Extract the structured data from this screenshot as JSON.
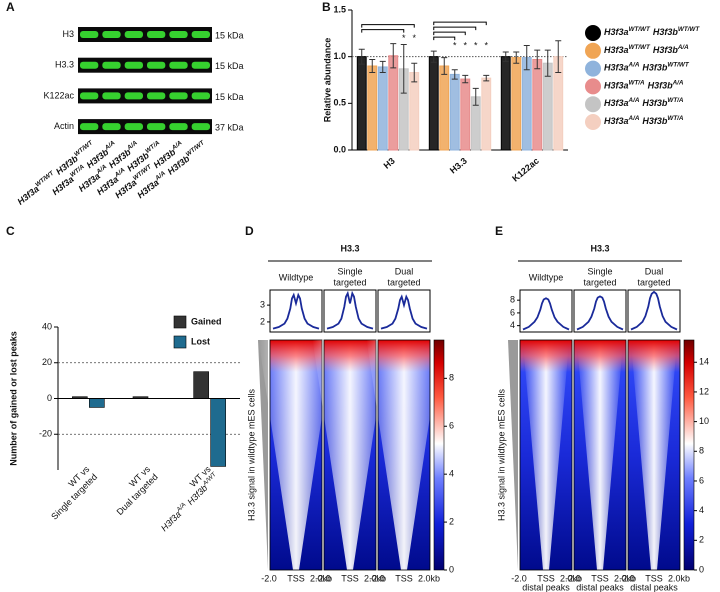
{
  "blot": {
    "label": "A",
    "rows": [
      {
        "name": "H3",
        "size": "15 kDa"
      },
      {
        "name": "H3.3",
        "size": "15 kDa"
      },
      {
        "name": "K122ac",
        "size": "15 kDa"
      },
      {
        "name": "Actin",
        "size": "37 kDa"
      }
    ],
    "lanes": [
      [
        "H3f3a",
        "WT/WT",
        "H3f3b",
        "WT/WT"
      ],
      [
        "H3f3a",
        "WT/A",
        "H3f3b",
        "A/A"
      ],
      [
        "H3f3a",
        "A/A",
        "H3f3b",
        "A/A"
      ],
      [
        "H3f3a",
        "A/A",
        "H3f3b",
        "WT/A"
      ],
      [
        "H3f3a",
        "WT/WT",
        "H3f3b",
        "A/A"
      ],
      [
        "H3f3a",
        "A/A",
        "H3f3b",
        "WT/WT"
      ]
    ]
  },
  "chart_data": [
    {
      "type": "bar",
      "label": "B",
      "y_label": "Relative abundance",
      "categories": [
        "H3",
        "H3.3",
        "K122ac"
      ],
      "series": [
        {
          "name": [
            "H3f3a",
            "WT/WT",
            "H3f3b",
            "WT/WT"
          ],
          "color": "#000000",
          "values": [
            1.0,
            1.0,
            1.0
          ],
          "errors": [
            0.08,
            0.06,
            0.05
          ]
        },
        {
          "name": [
            "H3f3a",
            "WT/WT",
            "H3f3b",
            "A/A"
          ],
          "color": "#f0a555",
          "values": [
            0.9,
            0.9,
            0.99
          ],
          "errors": [
            0.07,
            0.09,
            0.06
          ]
        },
        {
          "name": [
            "H3f3a",
            "A/A",
            "H3f3b",
            "WT/WT"
          ],
          "color": "#8fb3dc",
          "values": [
            0.89,
            0.81,
            0.99
          ],
          "errors": [
            0.06,
            0.05,
            0.13
          ]
        },
        {
          "name": [
            "H3f3a",
            "WT/A",
            "H3f3b",
            "A/A"
          ],
          "color": "#e88c8c",
          "values": [
            1.01,
            0.76,
            0.97
          ],
          "errors": [
            0.13,
            0.04,
            0.1
          ]
        },
        {
          "name": [
            "H3f3a",
            "A/A",
            "H3f3b",
            "WT/A"
          ],
          "color": "#c4c4c4",
          "values": [
            0.87,
            0.57,
            0.93
          ],
          "errors": [
            0.26,
            0.09,
            0.14
          ]
        },
        {
          "name": [
            "H3f3a",
            "A/A",
            "H3f3b",
            "WT/A"
          ],
          "color": "#f4cfc0",
          "values": [
            0.83,
            0.77,
            1.0
          ],
          "errors": [
            0.1,
            0.03,
            0.17
          ]
        }
      ],
      "ylim": [
        0,
        1.5
      ],
      "yticks": [
        {
          "value": 0,
          "label": "0.0"
        },
        {
          "value": 0.5,
          "label": "0.5"
        },
        {
          "value": 1,
          "label": "1.0"
        },
        {
          "value": 1.5,
          "label": "1.5"
        }
      ],
      "reference_line": 1,
      "significance": [
        [
          null,
          null,
          null,
          null,
          "*",
          "*"
        ],
        [
          null,
          null,
          "*",
          "*",
          "*",
          "*"
        ],
        [
          null,
          null,
          null,
          null,
          null,
          null
        ]
      ],
      "legend": "right"
    },
    {
      "type": "bar",
      "label": "C",
      "y_label": "Number of gained or lost peaks",
      "categories": [
        [
          [
            "WT vs"
          ],
          [
            "Single targeted"
          ]
        ],
        [
          [
            "WT vs"
          ],
          [
            "Dual targeted"
          ]
        ],
        [
          [
            "WT vs"
          ],
          [
            "H3f3a",
            "A/A",
            "H3f3b",
            "A/WT"
          ]
        ]
      ],
      "series": [
        {
          "name": "Gained",
          "color": "#333333",
          "values": [
            1,
            1,
            15
          ]
        },
        {
          "name": "Lost",
          "color": "#1f6b8f",
          "values": [
            -5,
            0,
            -38
          ]
        }
      ],
      "ylim": [
        -40,
        40
      ],
      "yticks": [
        -20,
        0,
        20,
        40
      ],
      "reference_lines": [
        20,
        -20
      ],
      "legend": "upper right"
    },
    {
      "type": "line",
      "label": "D",
      "title": "H3.3",
      "color": "#1a2a9a",
      "x": [
        -2,
        -1.5,
        -1,
        -0.75,
        -0.5,
        -0.35,
        -0.2,
        0,
        0.2,
        0.35,
        0.5,
        0.75,
        1,
        1.5,
        2
      ],
      "series": [
        {
          "name": [
            "Wildtype"
          ],
          "values": [
            1.6,
            1.7,
            1.9,
            2.2,
            2.8,
            3.4,
            3.6,
            3.1,
            3.6,
            3.4,
            2.8,
            2.2,
            1.9,
            1.7,
            1.6
          ]
        },
        {
          "name": [
            "Single",
            "targeted"
          ],
          "values": [
            1.6,
            1.7,
            1.9,
            2.2,
            2.9,
            3.5,
            3.7,
            3.1,
            3.7,
            3.5,
            2.9,
            2.2,
            1.9,
            1.7,
            1.6
          ]
        },
        {
          "name": [
            "Dual",
            "targeted"
          ],
          "values": [
            1.6,
            1.7,
            1.9,
            2.2,
            2.8,
            3.3,
            3.5,
            3.0,
            3.5,
            3.3,
            2.8,
            2.2,
            1.9,
            1.7,
            1.6
          ]
        }
      ],
      "xlim": [
        -2,
        2
      ],
      "xticks": [
        {
          "value": -2,
          "label": "-2.0"
        },
        {
          "value": 0,
          "label": "TSS"
        },
        {
          "value": 2,
          "label": "2.0kb"
        }
      ],
      "ylim": [
        1.4,
        3.9
      ],
      "yticks": [
        2,
        3
      ],
      "y_label": "H3.3 signal in wildtype mES cells",
      "colorbar": {
        "lim": [
          0,
          9.6
        ],
        "ticks": [
          0,
          2,
          4,
          6,
          8
        ]
      }
    },
    {
      "type": "line",
      "label": "E",
      "title": "H3.3",
      "color": "#1a2a9a",
      "x": [
        -2,
        -1.5,
        -1,
        -0.75,
        -0.5,
        -0.35,
        -0.2,
        0,
        0.2,
        0.35,
        0.5,
        0.75,
        1,
        1.5,
        2
      ],
      "series": [
        {
          "name": [
            "Wildtype"
          ],
          "values": [
            3.4,
            3.8,
            4.6,
            5.3,
            6.5,
            7.5,
            8.1,
            8.3,
            8.1,
            7.5,
            6.5,
            5.3,
            4.6,
            3.8,
            3.4
          ]
        },
        {
          "name": [
            "Single",
            "targeted"
          ],
          "values": [
            3.4,
            3.8,
            4.6,
            5.4,
            6.7,
            7.8,
            8.4,
            8.6,
            8.4,
            7.8,
            6.7,
            5.4,
            4.6,
            3.8,
            3.4
          ]
        },
        {
          "name": [
            "Dual",
            "targeted"
          ],
          "values": [
            3.4,
            3.8,
            4.6,
            5.5,
            7.0,
            8.3,
            9.0,
            9.3,
            9.0,
            8.3,
            7.0,
            5.5,
            4.6,
            3.8,
            3.4
          ]
        }
      ],
      "xlim": [
        -2,
        2
      ],
      "xticks": [
        {
          "value": -2,
          "label": "-2.0"
        },
        {
          "value": 0,
          "label": "TSS"
        },
        {
          "value": 2,
          "label": "2.0kb"
        }
      ],
      "x_label": "distal peaks",
      "ylim": [
        3,
        9.6
      ],
      "yticks": [
        4,
        6,
        8
      ],
      "y_label": "H3.3 signal in wildtype mES cells",
      "colorbar": {
        "lim": [
          0,
          15.5
        ],
        "ticks": [
          0,
          2,
          4,
          6,
          8,
          10,
          12,
          14
        ]
      }
    }
  ]
}
